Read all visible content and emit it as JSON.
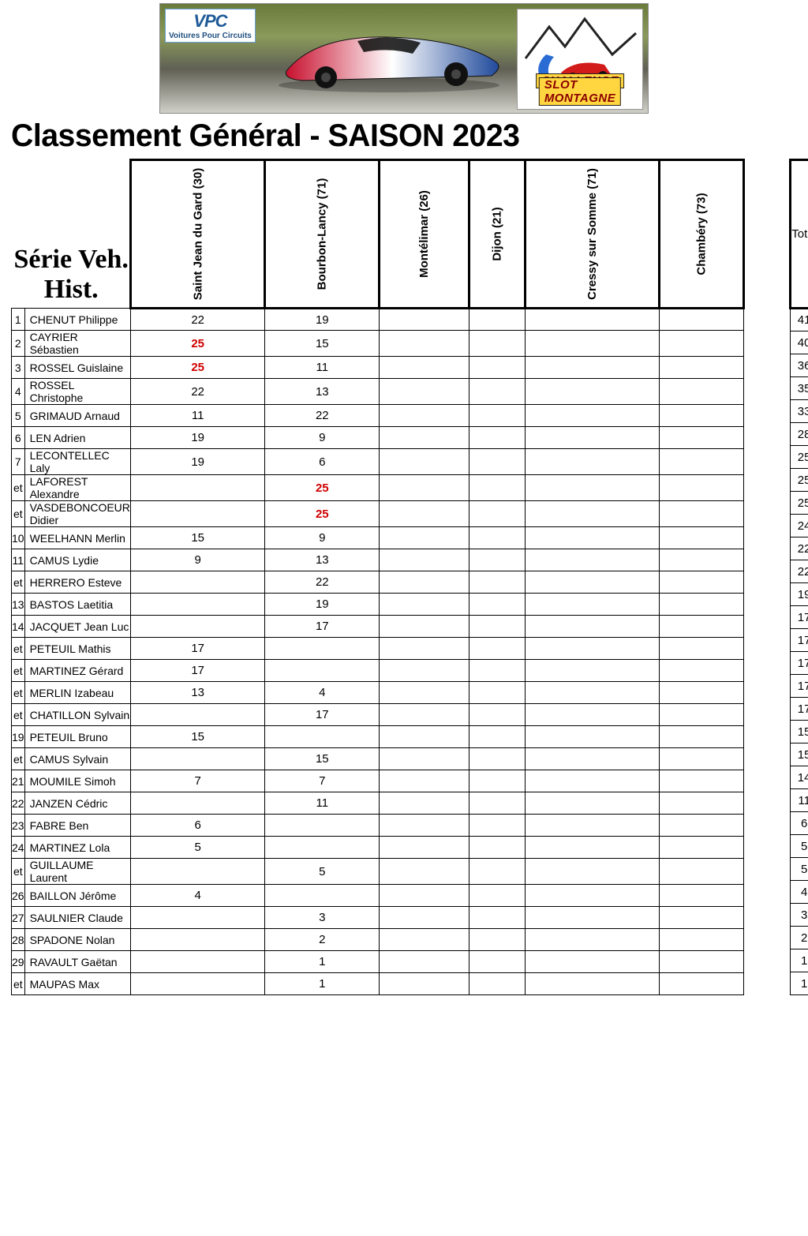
{
  "banner": {
    "vpc_initials": "VPC",
    "vpc_sub": "Voitures Pour Circuits",
    "csm_line1": "CHALLENGE",
    "csm_line2": "SLOT MONTAGNE"
  },
  "title": "Classement Général - SAISON 2023",
  "series_label": "Série Veh. Hist.",
  "total_label": "Total",
  "events": [
    "Saint Jean du Gard (30)",
    "Bourbon-Lancy (71)",
    "Montélimar (26)",
    "Dijon (21)",
    "Cressy sur Somme (71)",
    "Chambéry (73)"
  ],
  "highlight_color": "#d00000",
  "rows": [
    {
      "rank": "1",
      "name": "CHENUT Philippe",
      "scores": [
        "22",
        "19",
        "",
        "",
        "",
        ""
      ],
      "hl": [
        false,
        false,
        false,
        false,
        false,
        false
      ],
      "total": "41"
    },
    {
      "rank": "2",
      "name": "CAYRIER Sébastien",
      "scores": [
        "25",
        "15",
        "",
        "",
        "",
        ""
      ],
      "hl": [
        true,
        false,
        false,
        false,
        false,
        false
      ],
      "total": "40"
    },
    {
      "rank": "3",
      "name": "ROSSEL Guislaine",
      "scores": [
        "25",
        "11",
        "",
        "",
        "",
        ""
      ],
      "hl": [
        true,
        false,
        false,
        false,
        false,
        false
      ],
      "total": "36"
    },
    {
      "rank": "4",
      "name": "ROSSEL Christophe",
      "scores": [
        "22",
        "13",
        "",
        "",
        "",
        ""
      ],
      "hl": [
        false,
        false,
        false,
        false,
        false,
        false
      ],
      "total": "35"
    },
    {
      "rank": "5",
      "name": "GRIMAUD Arnaud",
      "scores": [
        "11",
        "22",
        "",
        "",
        "",
        ""
      ],
      "hl": [
        false,
        false,
        false,
        false,
        false,
        false
      ],
      "total": "33"
    },
    {
      "rank": "6",
      "name": "LEN Adrien",
      "scores": [
        "19",
        "9",
        "",
        "",
        "",
        ""
      ],
      "hl": [
        false,
        false,
        false,
        false,
        false,
        false
      ],
      "total": "28"
    },
    {
      "rank": "7",
      "name": "LECONTELLEC Laly",
      "scores": [
        "19",
        "6",
        "",
        "",
        "",
        ""
      ],
      "hl": [
        false,
        false,
        false,
        false,
        false,
        false
      ],
      "total": "25"
    },
    {
      "rank": "et",
      "name": "LAFOREST Alexandre",
      "scores": [
        "",
        "25",
        "",
        "",
        "",
        ""
      ],
      "hl": [
        false,
        true,
        false,
        false,
        false,
        false
      ],
      "total": "25"
    },
    {
      "rank": "et",
      "name": "VASDEBONCOEUR Didier",
      "scores": [
        "",
        "25",
        "",
        "",
        "",
        ""
      ],
      "hl": [
        false,
        true,
        false,
        false,
        false,
        false
      ],
      "total": "25"
    },
    {
      "rank": "10",
      "name": "WEELHANN Merlin",
      "scores": [
        "15",
        "9",
        "",
        "",
        "",
        ""
      ],
      "hl": [
        false,
        false,
        false,
        false,
        false,
        false
      ],
      "total": "24"
    },
    {
      "rank": "11",
      "name": "CAMUS Lydie",
      "scores": [
        "9",
        "13",
        "",
        "",
        "",
        ""
      ],
      "hl": [
        false,
        false,
        false,
        false,
        false,
        false
      ],
      "total": "22"
    },
    {
      "rank": "et",
      "name": "HERRERO Esteve",
      "scores": [
        "",
        "22",
        "",
        "",
        "",
        ""
      ],
      "hl": [
        false,
        false,
        false,
        false,
        false,
        false
      ],
      "total": "22"
    },
    {
      "rank": "13",
      "name": "BASTOS Laetitia",
      "scores": [
        "",
        "19",
        "",
        "",
        "",
        ""
      ],
      "hl": [
        false,
        false,
        false,
        false,
        false,
        false
      ],
      "total": "19"
    },
    {
      "rank": "14",
      "name": "JACQUET Jean Luc",
      "scores": [
        "",
        "17",
        "",
        "",
        "",
        ""
      ],
      "hl": [
        false,
        false,
        false,
        false,
        false,
        false
      ],
      "total": "17"
    },
    {
      "rank": "et",
      "name": "PETEUIL Mathis",
      "scores": [
        "17",
        "",
        "",
        "",
        "",
        ""
      ],
      "hl": [
        false,
        false,
        false,
        false,
        false,
        false
      ],
      "total": "17"
    },
    {
      "rank": "et",
      "name": "MARTINEZ Gérard",
      "scores": [
        "17",
        "",
        "",
        "",
        "",
        ""
      ],
      "hl": [
        false,
        false,
        false,
        false,
        false,
        false
      ],
      "total": "17"
    },
    {
      "rank": "et",
      "name": "MERLIN Izabeau",
      "scores": [
        "13",
        "4",
        "",
        "",
        "",
        ""
      ],
      "hl": [
        false,
        false,
        false,
        false,
        false,
        false
      ],
      "total": "17"
    },
    {
      "rank": "et",
      "name": "CHATILLON Sylvain",
      "scores": [
        "",
        "17",
        "",
        "",
        "",
        ""
      ],
      "hl": [
        false,
        false,
        false,
        false,
        false,
        false
      ],
      "total": "17"
    },
    {
      "rank": "19",
      "name": "PETEUIL Bruno",
      "scores": [
        "15",
        "",
        "",
        "",
        "",
        ""
      ],
      "hl": [
        false,
        false,
        false,
        false,
        false,
        false
      ],
      "total": "15"
    },
    {
      "rank": "et",
      "name": "CAMUS Sylvain",
      "scores": [
        "",
        "15",
        "",
        "",
        "",
        ""
      ],
      "hl": [
        false,
        false,
        false,
        false,
        false,
        false
      ],
      "total": "15"
    },
    {
      "rank": "21",
      "name": "MOUMILE Simoh",
      "scores": [
        "7",
        "7",
        "",
        "",
        "",
        ""
      ],
      "hl": [
        false,
        false,
        false,
        false,
        false,
        false
      ],
      "total": "14"
    },
    {
      "rank": "22",
      "name": "JANZEN Cédric",
      "scores": [
        "",
        "11",
        "",
        "",
        "",
        ""
      ],
      "hl": [
        false,
        false,
        false,
        false,
        false,
        false
      ],
      "total": "11"
    },
    {
      "rank": "23",
      "name": "FABRE Ben",
      "scores": [
        "6",
        "",
        "",
        "",
        "",
        ""
      ],
      "hl": [
        false,
        false,
        false,
        false,
        false,
        false
      ],
      "total": "6"
    },
    {
      "rank": "24",
      "name": "MARTINEZ Lola",
      "scores": [
        "5",
        "",
        "",
        "",
        "",
        ""
      ],
      "hl": [
        false,
        false,
        false,
        false,
        false,
        false
      ],
      "total": "5"
    },
    {
      "rank": "et",
      "name": "GUILLAUME Laurent",
      "scores": [
        "",
        "5",
        "",
        "",
        "",
        ""
      ],
      "hl": [
        false,
        false,
        false,
        false,
        false,
        false
      ],
      "total": "5"
    },
    {
      "rank": "26",
      "name": "BAILLON Jérôme",
      "scores": [
        "4",
        "",
        "",
        "",
        "",
        ""
      ],
      "hl": [
        false,
        false,
        false,
        false,
        false,
        false
      ],
      "total": "4"
    },
    {
      "rank": "27",
      "name": "SAULNIER Claude",
      "scores": [
        "",
        "3",
        "",
        "",
        "",
        ""
      ],
      "hl": [
        false,
        false,
        false,
        false,
        false,
        false
      ],
      "total": "3"
    },
    {
      "rank": "28",
      "name": "SPADONE Nolan",
      "scores": [
        "",
        "2",
        "",
        "",
        "",
        ""
      ],
      "hl": [
        false,
        false,
        false,
        false,
        false,
        false
      ],
      "total": "2"
    },
    {
      "rank": "29",
      "name": "RAVAULT Gaëtan",
      "scores": [
        "",
        "1",
        "",
        "",
        "",
        ""
      ],
      "hl": [
        false,
        false,
        false,
        false,
        false,
        false
      ],
      "total": "1"
    },
    {
      "rank": "et",
      "name": "MAUPAS Max",
      "scores": [
        "",
        "1",
        "",
        "",
        "",
        ""
      ],
      "hl": [
        false,
        false,
        false,
        false,
        false,
        false
      ],
      "total": "1"
    }
  ]
}
